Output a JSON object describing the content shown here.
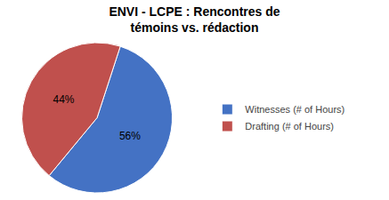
{
  "chart_data": {
    "type": "pie",
    "title": "ENVI - LCPE : Rencontres de\ntémoins vs. rédaction",
    "categories": [
      "Witnesses (# of Hours)",
      "Drafting (# of Hours)"
    ],
    "values": [
      56,
      44
    ],
    "value_labels": [
      "56%",
      "44%"
    ],
    "colors": [
      "#4472C4",
      "#C0504D"
    ],
    "data_labels": true,
    "legend": "right"
  }
}
